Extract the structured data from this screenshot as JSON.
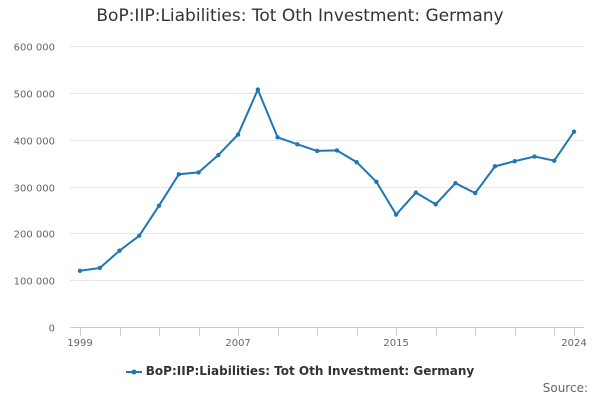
{
  "chart_data": {
    "type": "line",
    "title": "BoP:IIP:Liabilities: Tot Oth Investment: Germany",
    "xlabel": "",
    "ylabel": "",
    "x": [
      1999,
      2000,
      2001,
      2002,
      2003,
      2004,
      2005,
      2006,
      2007,
      2008,
      2009,
      2010,
      2011,
      2012,
      2013,
      2014,
      2015,
      2016,
      2017,
      2018,
      2019,
      2020,
      2021,
      2022,
      2023,
      2024
    ],
    "series": [
      {
        "name": "BoP:IIP:Liabilities: Tot Oth Investment: Germany",
        "color": "#1f77b4",
        "values": [
          120000,
          126000,
          163000,
          195000,
          259000,
          326000,
          330000,
          367000,
          411000,
          507000,
          405000,
          390000,
          376000,
          377000,
          352000,
          310000,
          240000,
          287000,
          262000,
          307000,
          286000,
          343000,
          354000,
          364000,
          355000,
          417000
        ]
      }
    ],
    "ylim": [
      0,
      600000
    ],
    "yticks": [
      0,
      100000,
      200000,
      300000,
      400000,
      500000,
      600000
    ],
    "ytick_labels": [
      "0",
      "100 000",
      "200 000",
      "300 000",
      "400 000",
      "500 000",
      "600 000"
    ],
    "xtick_labels": [
      "1999",
      "2007",
      "2015",
      "2024"
    ],
    "xtick_label_years": [
      1999,
      2007,
      2015,
      2024
    ],
    "grid": true,
    "legend_position": "bottom-center",
    "source_label": "Source:"
  }
}
